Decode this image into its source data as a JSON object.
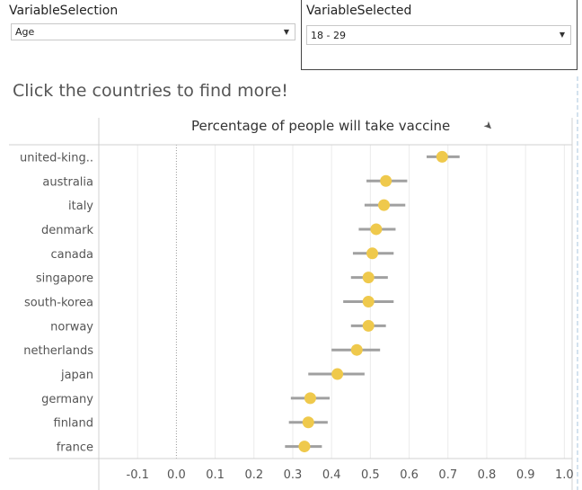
{
  "controls": {
    "variable_selection": {
      "label": "VariableSelection",
      "value": "Age"
    },
    "variable_selected": {
      "label": "VariableSelected",
      "value": "18 - 29"
    }
  },
  "headline": "Click the countries to find more!",
  "chart_data": {
    "type": "scatter",
    "title": "Percentage of people will take vaccine",
    "orientation": "horizontal",
    "xlabel": "",
    "ylabel": "",
    "xlim": [
      -0.2,
      1.02
    ],
    "x_ticks": [
      "-0.1",
      "0.0",
      "0.1",
      "0.2",
      "0.3",
      "0.4",
      "0.5",
      "0.6",
      "0.7",
      "0.8",
      "0.9",
      "1.0"
    ],
    "categories": [
      "united-king..",
      "australia",
      "italy",
      "denmark",
      "canada",
      "singapore",
      "south-korea",
      "norway",
      "netherlands",
      "japan",
      "germany",
      "finland",
      "france"
    ],
    "values": [
      0.685,
      0.54,
      0.535,
      0.515,
      0.505,
      0.495,
      0.495,
      0.495,
      0.465,
      0.415,
      0.345,
      0.34,
      0.33
    ],
    "ci_low": [
      0.645,
      0.49,
      0.485,
      0.47,
      0.455,
      0.45,
      0.43,
      0.45,
      0.4,
      0.34,
      0.295,
      0.29,
      0.28
    ],
    "ci_high": [
      0.73,
      0.595,
      0.59,
      0.565,
      0.56,
      0.545,
      0.56,
      0.54,
      0.525,
      0.485,
      0.395,
      0.39,
      0.375
    ],
    "grid": true,
    "colors": {
      "point": "#EFC94C",
      "interval": "#A0A0A0",
      "grid": "#EBEBEB",
      "zero_line": "#999999",
      "axis": "#D0D0D0"
    }
  }
}
